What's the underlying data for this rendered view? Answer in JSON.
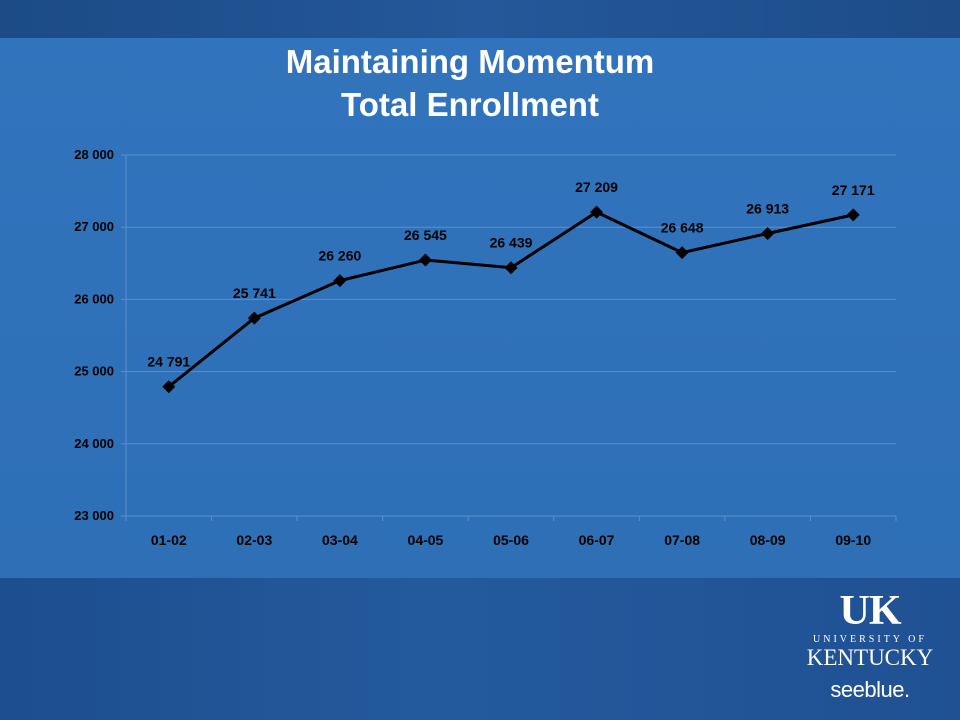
{
  "slide": {
    "title_line1": "Maintaining Momentum",
    "title_line2": "Total Enrollment"
  },
  "logo": {
    "mark": "UK",
    "university": "UNIVERSITY OF",
    "name": "KENTUCKY",
    "tagline": "seeblue."
  },
  "colors": {
    "background": "#2e6fb6",
    "line": "#000000",
    "gridline": "#5c8fc9",
    "text": "#000000",
    "title": "#ffffff"
  },
  "chart_data": {
    "type": "line",
    "categories": [
      "01-02",
      "02-03",
      "03-04",
      "04-05",
      "05-06",
      "06-07",
      "07-08",
      "08-09",
      "09-10"
    ],
    "values": [
      24791,
      25741,
      26260,
      26545,
      26439,
      27209,
      26648,
      26913,
      27171
    ],
    "data_labels": [
      "24 791",
      "25 741",
      "26 260",
      "26 545",
      "26 439",
      "27 209",
      "26 648",
      "26 913",
      "27 171"
    ],
    "ylim": [
      23000,
      28000
    ],
    "yticks": [
      23000,
      24000,
      25000,
      26000,
      27000,
      28000
    ],
    "ytick_labels": [
      "23 000",
      "24 000",
      "25 000",
      "26 000",
      "27 000",
      "28 000"
    ],
    "marker": "diamond",
    "grid": true,
    "legend": "none"
  }
}
